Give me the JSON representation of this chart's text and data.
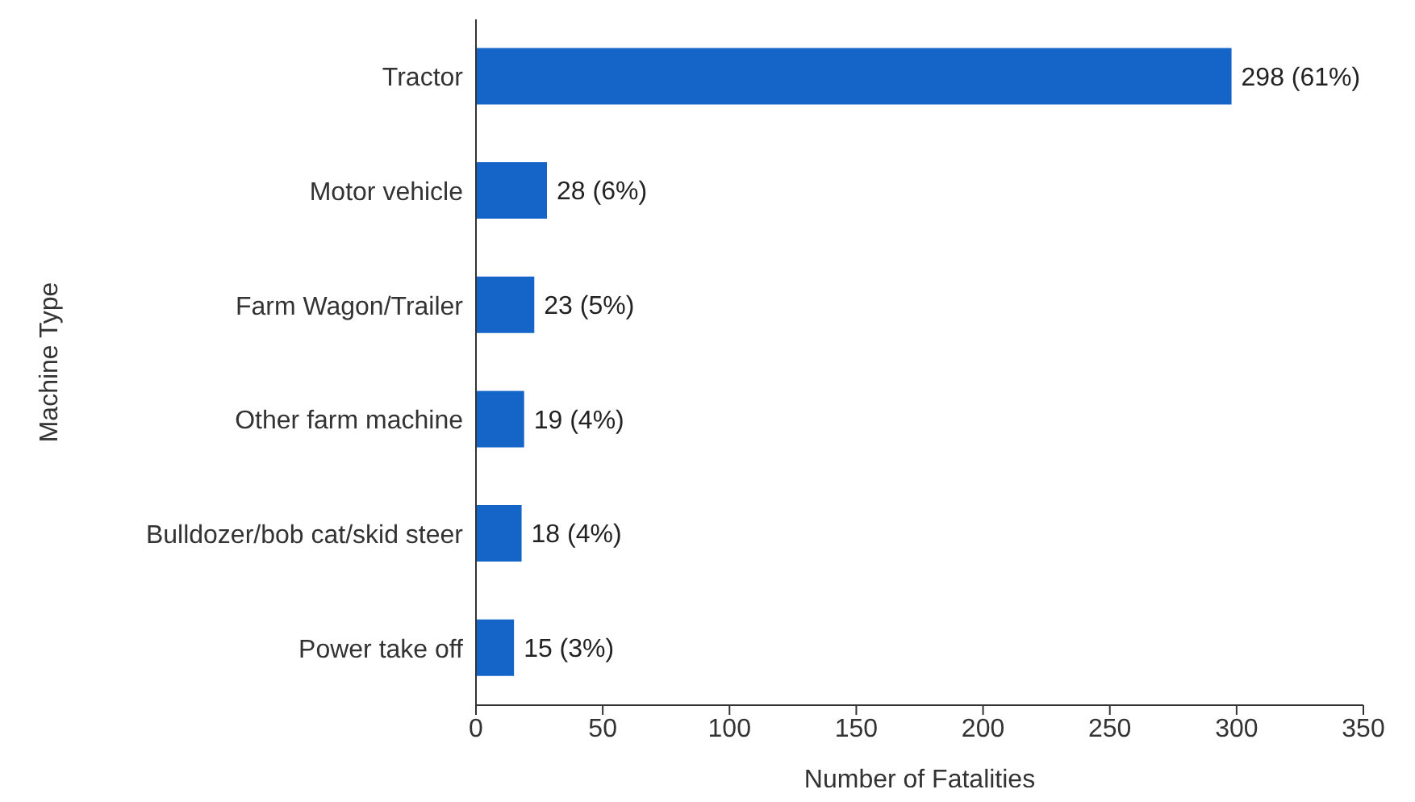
{
  "chart_data": {
    "type": "bar",
    "orientation": "horizontal",
    "xlabel": "Number of Fatalities",
    "ylabel": "Machine Type",
    "categories": [
      "Tractor",
      "Motor vehicle",
      "Farm Wagon/Trailer",
      "Other farm machine",
      "Bulldozer/bob cat/skid steer",
      "Power take off"
    ],
    "values": [
      298,
      28,
      23,
      19,
      18,
      15
    ],
    "value_labels": [
      "298 (61%)",
      "28 (6%)",
      "23 (5%)",
      "19 (4%)",
      "18 (4%)",
      "15 (3%)"
    ],
    "color": "#1565c8",
    "xlim": [
      0,
      350
    ],
    "xticks": [
      0,
      50,
      100,
      150,
      200,
      250,
      300,
      350
    ],
    "grid": false,
    "legend": false
  }
}
